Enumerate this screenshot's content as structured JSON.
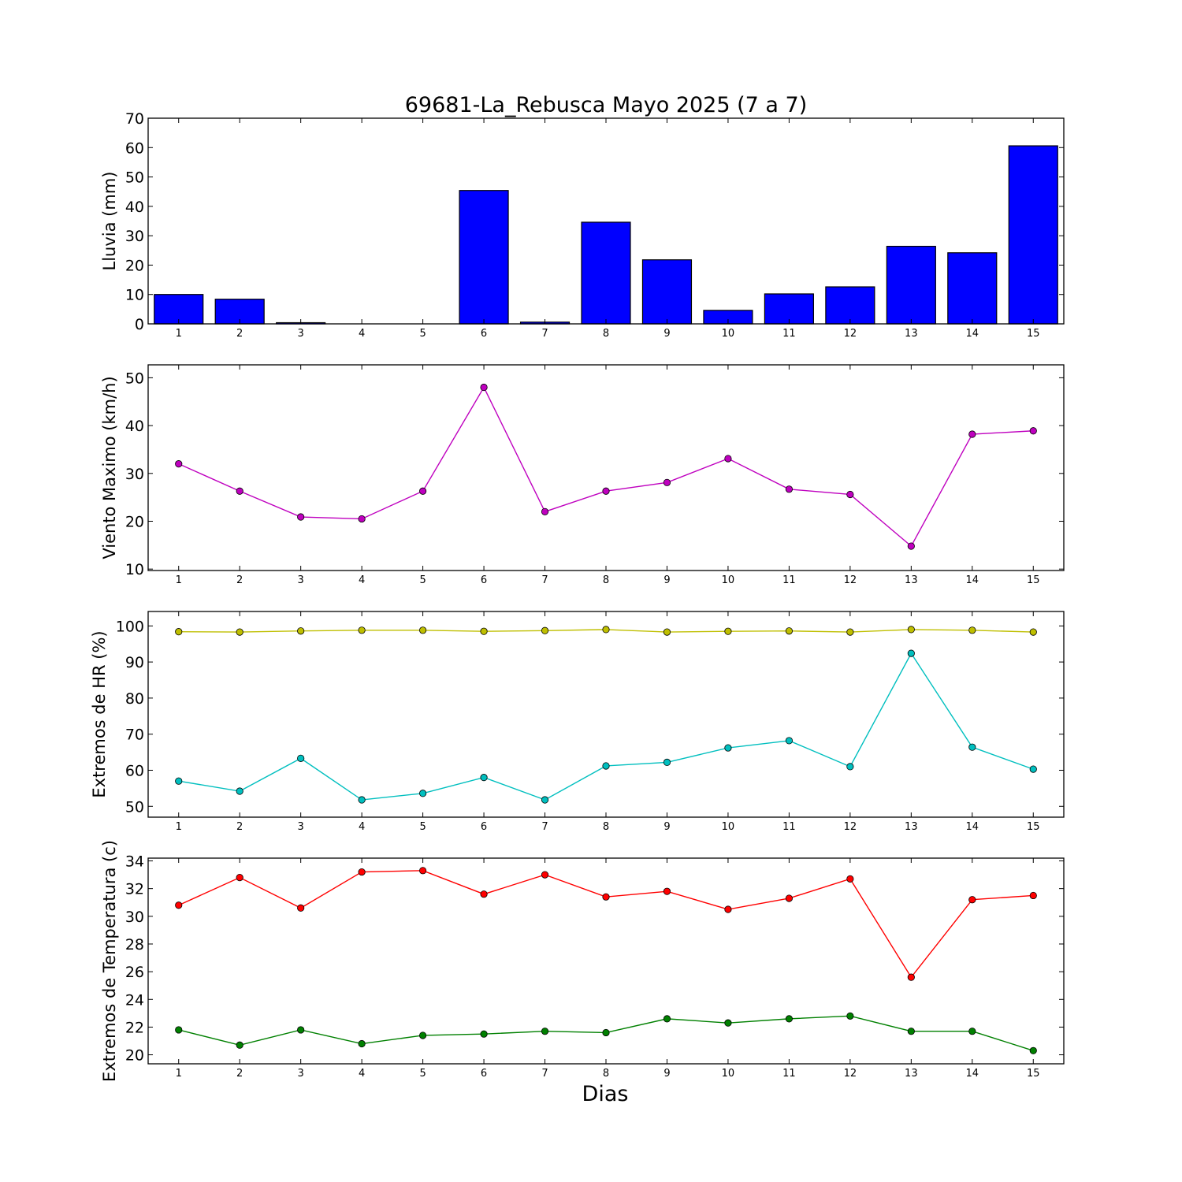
{
  "figure": {
    "title": "69681-La_Rebusca Mayo 2025  (7 a 7)",
    "xlabel": "Dias"
  },
  "chart_data": [
    {
      "type": "bar",
      "ylabel": "Lluvia (mm)",
      "categories": [
        "1",
        "2",
        "3",
        "4",
        "5",
        "6",
        "7",
        "8",
        "9",
        "10",
        "11",
        "12",
        "13",
        "14",
        "15"
      ],
      "ylim": [
        0,
        70
      ],
      "yticks": [
        0,
        10,
        20,
        30,
        40,
        50,
        60,
        70
      ],
      "grid": false,
      "series": [
        {
          "color": "#0000ff",
          "values": [
            10.0,
            8.4,
            0.4,
            0.0,
            0.0,
            45.4,
            0.6,
            34.6,
            21.8,
            4.6,
            10.2,
            12.6,
            26.4,
            24.2,
            60.6
          ]
        }
      ]
    },
    {
      "type": "line",
      "ylabel": "Viento Maximo (km/h)",
      "categories": [
        "1",
        "2",
        "3",
        "4",
        "5",
        "6",
        "7",
        "8",
        "9",
        "10",
        "11",
        "12",
        "13",
        "14",
        "15"
      ],
      "ylim": [
        9.7,
        52.7
      ],
      "yticks": [
        10,
        20,
        30,
        40,
        50
      ],
      "grid": false,
      "series": [
        {
          "color": "#bf00bf",
          "values": [
            32.0,
            26.3,
            20.9,
            20.5,
            26.3,
            48.0,
            22.0,
            26.3,
            28.1,
            33.1,
            26.7,
            25.6,
            14.8,
            38.2,
            38.9
          ]
        }
      ]
    },
    {
      "type": "line",
      "ylabel": "Extremos de HR (%)",
      "categories": [
        "1",
        "2",
        "3",
        "4",
        "5",
        "6",
        "7",
        "8",
        "9",
        "10",
        "11",
        "12",
        "13",
        "14",
        "15"
      ],
      "ylim": [
        47.0,
        104.0
      ],
      "yticks": [
        50,
        60,
        70,
        80,
        90,
        100
      ],
      "grid": false,
      "series": [
        {
          "color": "#bfbf00",
          "values": [
            98.4,
            98.3,
            98.6,
            98.8,
            98.8,
            98.5,
            98.7,
            99.0,
            98.3,
            98.5,
            98.6,
            98.3,
            99.0,
            98.8,
            98.3
          ]
        },
        {
          "color": "#00bfbf",
          "values": [
            57.0,
            54.2,
            63.3,
            51.8,
            53.6,
            58.0,
            51.8,
            61.2,
            62.2,
            66.2,
            68.2,
            61.0,
            92.4,
            66.4,
            60.3
          ]
        }
      ]
    },
    {
      "type": "line",
      "ylabel": "Extremos de Temperatura (c)",
      "categories": [
        "1",
        "2",
        "3",
        "4",
        "5",
        "6",
        "7",
        "8",
        "9",
        "10",
        "11",
        "12",
        "13",
        "14",
        "15"
      ],
      "ylim": [
        19.35,
        34.2
      ],
      "yticks": [
        20,
        22,
        24,
        26,
        28,
        30,
        32,
        34
      ],
      "grid": false,
      "series": [
        {
          "color": "#ff0000",
          "values": [
            30.8,
            32.8,
            30.6,
            33.2,
            33.3,
            31.6,
            33.0,
            31.4,
            31.8,
            30.5,
            31.3,
            32.7,
            25.6,
            31.2,
            31.5
          ]
        },
        {
          "color": "#008000",
          "values": [
            21.8,
            20.7,
            21.8,
            20.8,
            21.4,
            21.5,
            21.7,
            21.6,
            22.6,
            22.3,
            22.6,
            22.8,
            21.7,
            21.7,
            20.3
          ]
        }
      ]
    }
  ]
}
